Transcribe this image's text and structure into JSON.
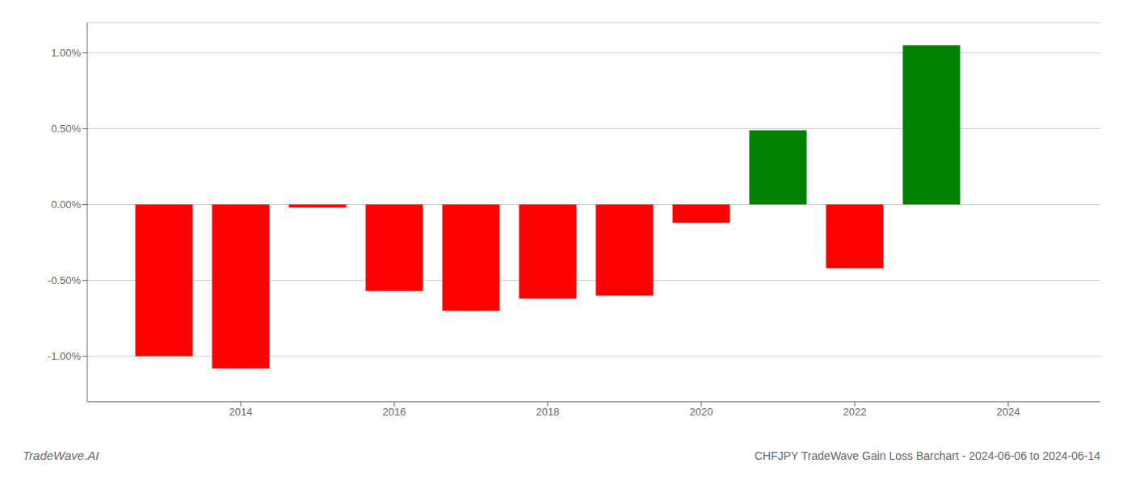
{
  "chart_data": {
    "type": "bar",
    "title": "CHFJPY TradeWave Gain Loss Barchart - 2024-06-06 to 2024-06-14",
    "annotations": [
      "TradeWave.AI"
    ],
    "x": [
      2013,
      2014,
      2015,
      2016,
      2017,
      2018,
      2019,
      2020,
      2021,
      2022,
      2023
    ],
    "values": [
      -1.0,
      -1.08,
      -0.02,
      -0.57,
      -0.7,
      -0.62,
      -0.6,
      -0.12,
      0.49,
      -0.42,
      1.05
    ],
    "colors": [
      "#ff0000",
      "#ff0000",
      "#ff0000",
      "#ff0000",
      "#ff0000",
      "#ff0000",
      "#ff0000",
      "#ff0000",
      "#008000",
      "#ff0000",
      "#008000"
    ],
    "xlim": [
      2012.0,
      2025.2
    ],
    "xticks": [
      2014,
      2016,
      2018,
      2020,
      2022,
      2024
    ],
    "ylim": [
      -1.3,
      1.2
    ],
    "yticks": [
      {
        "value": -1.0,
        "label": "-1.00%"
      },
      {
        "value": -0.5,
        "label": "-0.50%"
      },
      {
        "value": 0.0,
        "label": "0.00%"
      },
      {
        "value": 0.5,
        "label": "0.50%"
      },
      {
        "value": 1.0,
        "label": "1.00%"
      }
    ],
    "grid": "y"
  }
}
